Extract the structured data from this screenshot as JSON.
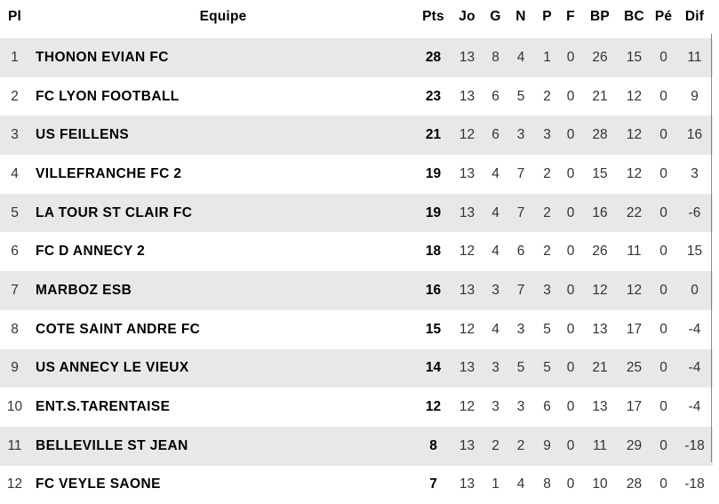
{
  "table": {
    "columns": [
      {
        "key": "pl",
        "label": "Pl"
      },
      {
        "key": "team",
        "label": "Equipe"
      },
      {
        "key": "pts",
        "label": "Pts"
      },
      {
        "key": "jo",
        "label": "Jo"
      },
      {
        "key": "g",
        "label": "G"
      },
      {
        "key": "n",
        "label": "N"
      },
      {
        "key": "p",
        "label": "P"
      },
      {
        "key": "f",
        "label": "F"
      },
      {
        "key": "bp",
        "label": "BP"
      },
      {
        "key": "bc",
        "label": "BC"
      },
      {
        "key": "pe",
        "label": "Pé"
      },
      {
        "key": "dif",
        "label": "Dif"
      }
    ],
    "rows": [
      {
        "pl": "1",
        "team": "THONON EVIAN FC",
        "pts": "28",
        "jo": "13",
        "g": "8",
        "n": "4",
        "p": "1",
        "f": "0",
        "bp": "26",
        "bc": "15",
        "pe": "0",
        "dif": "11"
      },
      {
        "pl": "2",
        "team": "FC LYON FOOTBALL",
        "pts": "23",
        "jo": "13",
        "g": "6",
        "n": "5",
        "p": "2",
        "f": "0",
        "bp": "21",
        "bc": "12",
        "pe": "0",
        "dif": "9"
      },
      {
        "pl": "3",
        "team": "US FEILLENS",
        "pts": "21",
        "jo": "12",
        "g": "6",
        "n": "3",
        "p": "3",
        "f": "0",
        "bp": "28",
        "bc": "12",
        "pe": "0",
        "dif": "16"
      },
      {
        "pl": "4",
        "team": "VILLEFRANCHE FC 2",
        "pts": "19",
        "jo": "13",
        "g": "4",
        "n": "7",
        "p": "2",
        "f": "0",
        "bp": "15",
        "bc": "12",
        "pe": "0",
        "dif": "3"
      },
      {
        "pl": "5",
        "team": "LA TOUR ST CLAIR FC",
        "pts": "19",
        "jo": "13",
        "g": "4",
        "n": "7",
        "p": "2",
        "f": "0",
        "bp": "16",
        "bc": "22",
        "pe": "0",
        "dif": "-6"
      },
      {
        "pl": "6",
        "team": "FC D ANNECY 2",
        "pts": "18",
        "jo": "12",
        "g": "4",
        "n": "6",
        "p": "2",
        "f": "0",
        "bp": "26",
        "bc": "11",
        "pe": "0",
        "dif": "15"
      },
      {
        "pl": "7",
        "team": "MARBOZ ESB",
        "pts": "16",
        "jo": "13",
        "g": "3",
        "n": "7",
        "p": "3",
        "f": "0",
        "bp": "12",
        "bc": "12",
        "pe": "0",
        "dif": "0"
      },
      {
        "pl": "8",
        "team": "COTE SAINT ANDRE FC",
        "pts": "15",
        "jo": "12",
        "g": "4",
        "n": "3",
        "p": "5",
        "f": "0",
        "bp": "13",
        "bc": "17",
        "pe": "0",
        "dif": "-4"
      },
      {
        "pl": "9",
        "team": "US ANNECY LE VIEUX",
        "pts": "14",
        "jo": "13",
        "g": "3",
        "n": "5",
        "p": "5",
        "f": "0",
        "bp": "21",
        "bc": "25",
        "pe": "0",
        "dif": "-4"
      },
      {
        "pl": "10",
        "team": "ENT.S.TARENTAISE",
        "pts": "12",
        "jo": "12",
        "g": "3",
        "n": "3",
        "p": "6",
        "f": "0",
        "bp": "13",
        "bc": "17",
        "pe": "0",
        "dif": "-4"
      },
      {
        "pl": "11",
        "team": "BELLEVILLE ST JEAN",
        "pts": "8",
        "jo": "13",
        "g": "2",
        "n": "2",
        "p": "9",
        "f": "0",
        "bp": "11",
        "bc": "29",
        "pe": "0",
        "dif": "-18"
      },
      {
        "pl": "12",
        "team": "FC VEYLE SAONE",
        "pts": "7",
        "jo": "13",
        "g": "1",
        "n": "4",
        "p": "8",
        "f": "0",
        "bp": "10",
        "bc": "28",
        "pe": "0",
        "dif": "-18"
      }
    ]
  },
  "colors": {
    "zebra_row": "#e8e8e8",
    "text_primary": "#000000",
    "text_secondary": "#333333",
    "edge_line": "#5c6268"
  }
}
